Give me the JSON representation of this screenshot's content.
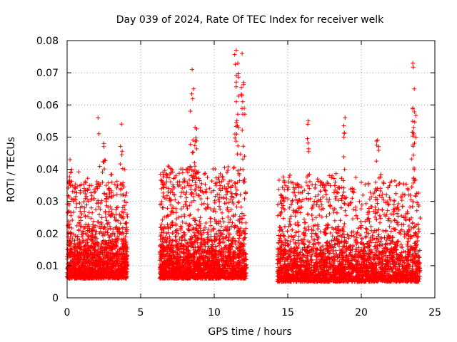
{
  "chart_data": {
    "type": "scatter",
    "title": "Day 039 of 2024, Rate Of TEC Index for receiver welk",
    "xlabel": "GPS time / hours",
    "ylabel": "ROTI / TECUs",
    "xlim": [
      0,
      25
    ],
    "ylim": [
      0,
      0.08
    ],
    "x_ticks": [
      0,
      5,
      10,
      15,
      20,
      25
    ],
    "x_tick_labels": [
      "0",
      "5",
      "10",
      "15",
      "20",
      "25"
    ],
    "y_ticks": [
      0,
      0.01,
      0.02,
      0.03,
      0.04,
      0.05,
      0.06,
      0.07,
      0.08
    ],
    "y_tick_labels": [
      "0",
      "0.01",
      "0.02",
      "0.03",
      "0.04",
      "0.05",
      "0.06",
      "0.07",
      "0.08"
    ],
    "grid": true,
    "marker": "+",
    "marker_color": "#ff0000",
    "series": [
      {
        "name": "ROTI",
        "note": "data coverage segments in hours (dense clouds of points)",
        "segments": [
          {
            "x_start": 0.0,
            "x_end": 4.1,
            "typical_range": [
              0.004,
              0.03
            ]
          },
          {
            "x_start": 6.3,
            "x_end": 12.2,
            "typical_range": [
              0.004,
              0.035
            ]
          },
          {
            "x_start": 14.3,
            "x_end": 24.0,
            "typical_range": [
              0.003,
              0.03
            ]
          }
        ],
        "peaks": [
          {
            "x": 0.2,
            "y": 0.043
          },
          {
            "x": 2.1,
            "y": 0.056
          },
          {
            "x": 2.5,
            "y": 0.048
          },
          {
            "x": 3.7,
            "y": 0.054
          },
          {
            "x": 8.5,
            "y": 0.071
          },
          {
            "x": 8.6,
            "y": 0.065
          },
          {
            "x": 8.7,
            "y": 0.053
          },
          {
            "x": 11.5,
            "y": 0.077
          },
          {
            "x": 11.6,
            "y": 0.073
          },
          {
            "x": 11.5,
            "y": 0.061
          },
          {
            "x": 11.9,
            "y": 0.076
          },
          {
            "x": 12.0,
            "y": 0.067
          },
          {
            "x": 16.4,
            "y": 0.055
          },
          {
            "x": 18.9,
            "y": 0.056
          },
          {
            "x": 21.1,
            "y": 0.049
          },
          {
            "x": 23.5,
            "y": 0.073
          },
          {
            "x": 23.6,
            "y": 0.065
          },
          {
            "x": 23.5,
            "y": 0.059
          }
        ]
      }
    ]
  }
}
